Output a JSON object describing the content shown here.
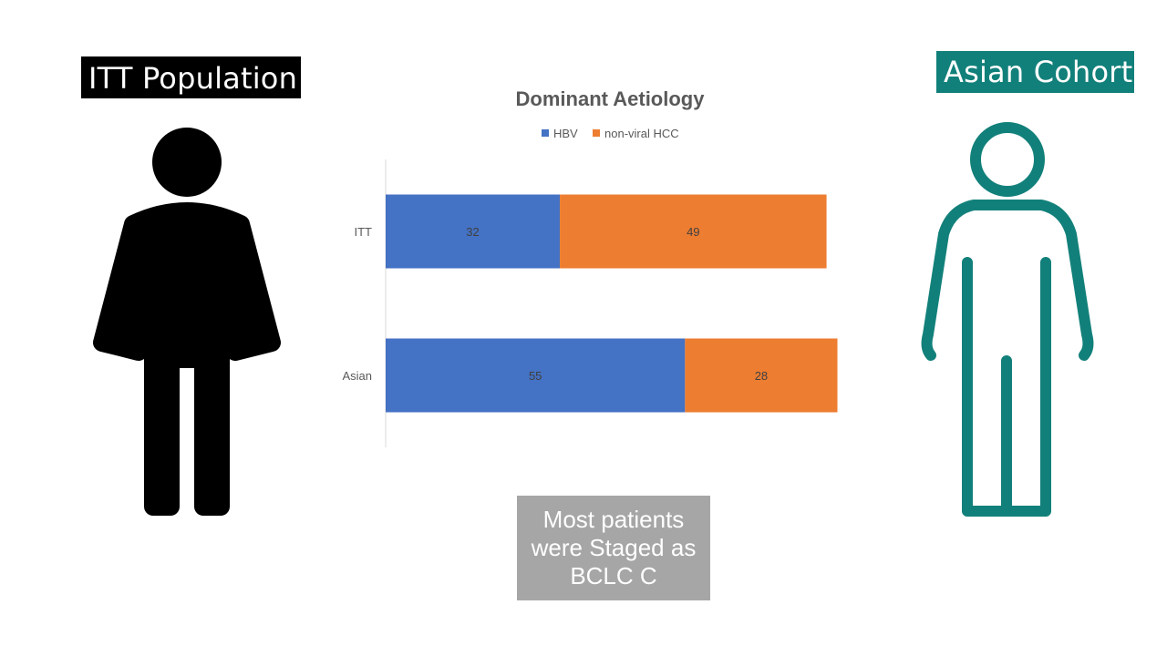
{
  "left_panel": {
    "label": "ITT Population",
    "icon": "person-icon-solid",
    "color": "#000000"
  },
  "right_panel": {
    "label": "Asian Cohort",
    "icon": "person-icon-outline",
    "color": "#12807a"
  },
  "callout": {
    "text": "Most patients were Staged as BCLC C",
    "background": "#a6a6a6"
  },
  "chart_data": {
    "type": "bar",
    "orientation": "horizontal",
    "stacked": true,
    "title": "Dominant Aetiology",
    "categories": [
      "ITT",
      "Asian"
    ],
    "series": [
      {
        "name": "HBV",
        "values": [
          32,
          55
        ],
        "color": "#4472c4"
      },
      {
        "name": "non-viral HCC",
        "values": [
          49,
          28
        ],
        "color": "#ed7d31"
      }
    ],
    "data_labels": true,
    "legend": "top",
    "grid": false,
    "xlabel": "",
    "ylabel": ""
  }
}
